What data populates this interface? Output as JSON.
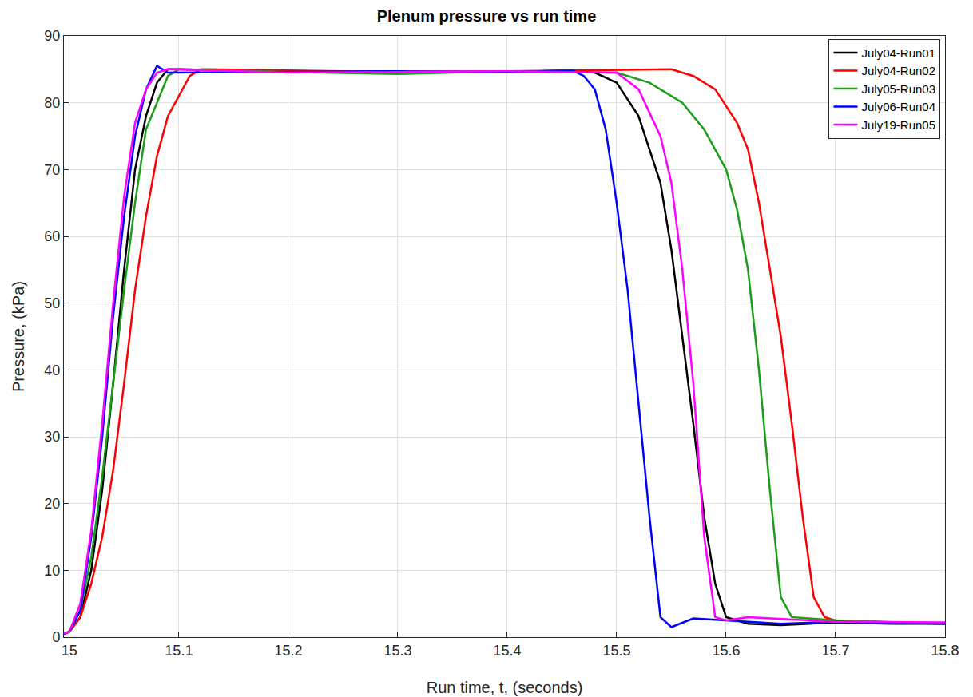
{
  "chart_data": {
    "type": "line",
    "title": "Plenum pressure vs run time",
    "x_label": "Run time, t, (seconds)",
    "y_label": "Pressure, (kPa)",
    "xlim": [
      14.995,
      15.8
    ],
    "xticks": [
      15,
      15.1,
      15.2,
      15.3,
      15.4,
      15.5,
      15.6,
      15.7,
      15.8
    ],
    "ylim": [
      0,
      90
    ],
    "yticks": [
      0,
      10,
      20,
      30,
      40,
      50,
      60,
      70,
      80,
      90
    ],
    "grid": true,
    "legend": "top-right",
    "series": [
      {
        "name": "July04-Run01",
        "color": "#000000",
        "x": [
          14.995,
          15.0,
          15.01,
          15.02,
          15.03,
          15.04,
          15.05,
          15.06,
          15.07,
          15.08,
          15.09,
          15.1,
          15.15,
          15.2,
          15.3,
          15.4,
          15.45,
          15.48,
          15.5,
          15.52,
          15.54,
          15.55,
          15.56,
          15.57,
          15.58,
          15.59,
          15.6,
          15.62,
          15.65,
          15.7,
          15.75,
          15.8
        ],
        "values": [
          0.5,
          0.8,
          3,
          10,
          22,
          38,
          55,
          70,
          78,
          83,
          85,
          85,
          84.8,
          84.6,
          84.7,
          84.6,
          84.8,
          84.5,
          83,
          78,
          68,
          58,
          45,
          32,
          18,
          8,
          3,
          2,
          1.8,
          2.2,
          2,
          2
        ]
      },
      {
        "name": "July04-Run02",
        "color": "#ff0000",
        "x": [
          14.995,
          15.0,
          15.01,
          15.02,
          15.03,
          15.04,
          15.05,
          15.06,
          15.07,
          15.08,
          15.09,
          15.1,
          15.11,
          15.12,
          15.2,
          15.3,
          15.4,
          15.5,
          15.55,
          15.57,
          15.59,
          15.61,
          15.62,
          15.63,
          15.64,
          15.65,
          15.66,
          15.67,
          15.68,
          15.69,
          15.7,
          15.75,
          15.8
        ],
        "values": [
          0.5,
          0.8,
          3,
          8,
          15,
          25,
          38,
          52,
          63,
          72,
          78,
          81,
          84,
          85,
          84.8,
          84.6,
          84.7,
          84.9,
          85,
          84,
          82,
          77,
          73,
          65,
          55,
          45,
          32,
          18,
          6,
          3,
          2.5,
          2.2,
          2
        ]
      },
      {
        "name": "July05-Run03",
        "color": "#1a9e1a",
        "x": [
          14.995,
          15.0,
          15.01,
          15.02,
          15.03,
          15.04,
          15.05,
          15.06,
          15.07,
          15.08,
          15.09,
          15.1,
          15.2,
          15.3,
          15.4,
          15.5,
          15.53,
          15.56,
          15.58,
          15.6,
          15.61,
          15.62,
          15.63,
          15.64,
          15.65,
          15.66,
          15.7,
          15.8
        ],
        "values": [
          0.5,
          0.9,
          4,
          12,
          24,
          38,
          52,
          65,
          76,
          80,
          84,
          85,
          84.6,
          84.3,
          84.7,
          84.5,
          83,
          80,
          76,
          70,
          64,
          55,
          40,
          22,
          6,
          3,
          2.5,
          2
        ]
      },
      {
        "name": "July06-Run04",
        "color": "#0000ff",
        "x": [
          14.995,
          15.0,
          15.01,
          15.02,
          15.03,
          15.04,
          15.05,
          15.06,
          15.07,
          15.08,
          15.09,
          15.2,
          15.3,
          15.4,
          15.46,
          15.47,
          15.48,
          15.49,
          15.5,
          15.51,
          15.52,
          15.53,
          15.54,
          15.55,
          15.57,
          15.6,
          15.65,
          15.7,
          15.8
        ],
        "values": [
          0.5,
          0.8,
          4,
          15,
          30,
          48,
          63,
          75,
          82,
          85.5,
          84.5,
          84.6,
          84.7,
          84.6,
          84.8,
          84,
          82,
          76,
          65,
          52,
          35,
          18,
          3,
          1.5,
          2.8,
          2.5,
          2,
          2.3,
          2
        ]
      },
      {
        "name": "July19-Run05",
        "color": "#ff00ff",
        "x": [
          14.995,
          15.0,
          15.01,
          15.02,
          15.03,
          15.04,
          15.05,
          15.06,
          15.07,
          15.08,
          15.09,
          15.2,
          15.3,
          15.4,
          15.5,
          15.52,
          15.54,
          15.55,
          15.56,
          15.57,
          15.58,
          15.59,
          15.6,
          15.62,
          15.7,
          15.8
        ],
        "values": [
          0.5,
          0.8,
          5,
          16,
          32,
          50,
          66,
          77,
          82,
          84.5,
          85,
          84.5,
          84.6,
          84.7,
          84.5,
          82,
          75,
          68,
          55,
          38,
          15,
          3,
          2.5,
          3,
          2.3,
          2.2
        ]
      }
    ]
  }
}
